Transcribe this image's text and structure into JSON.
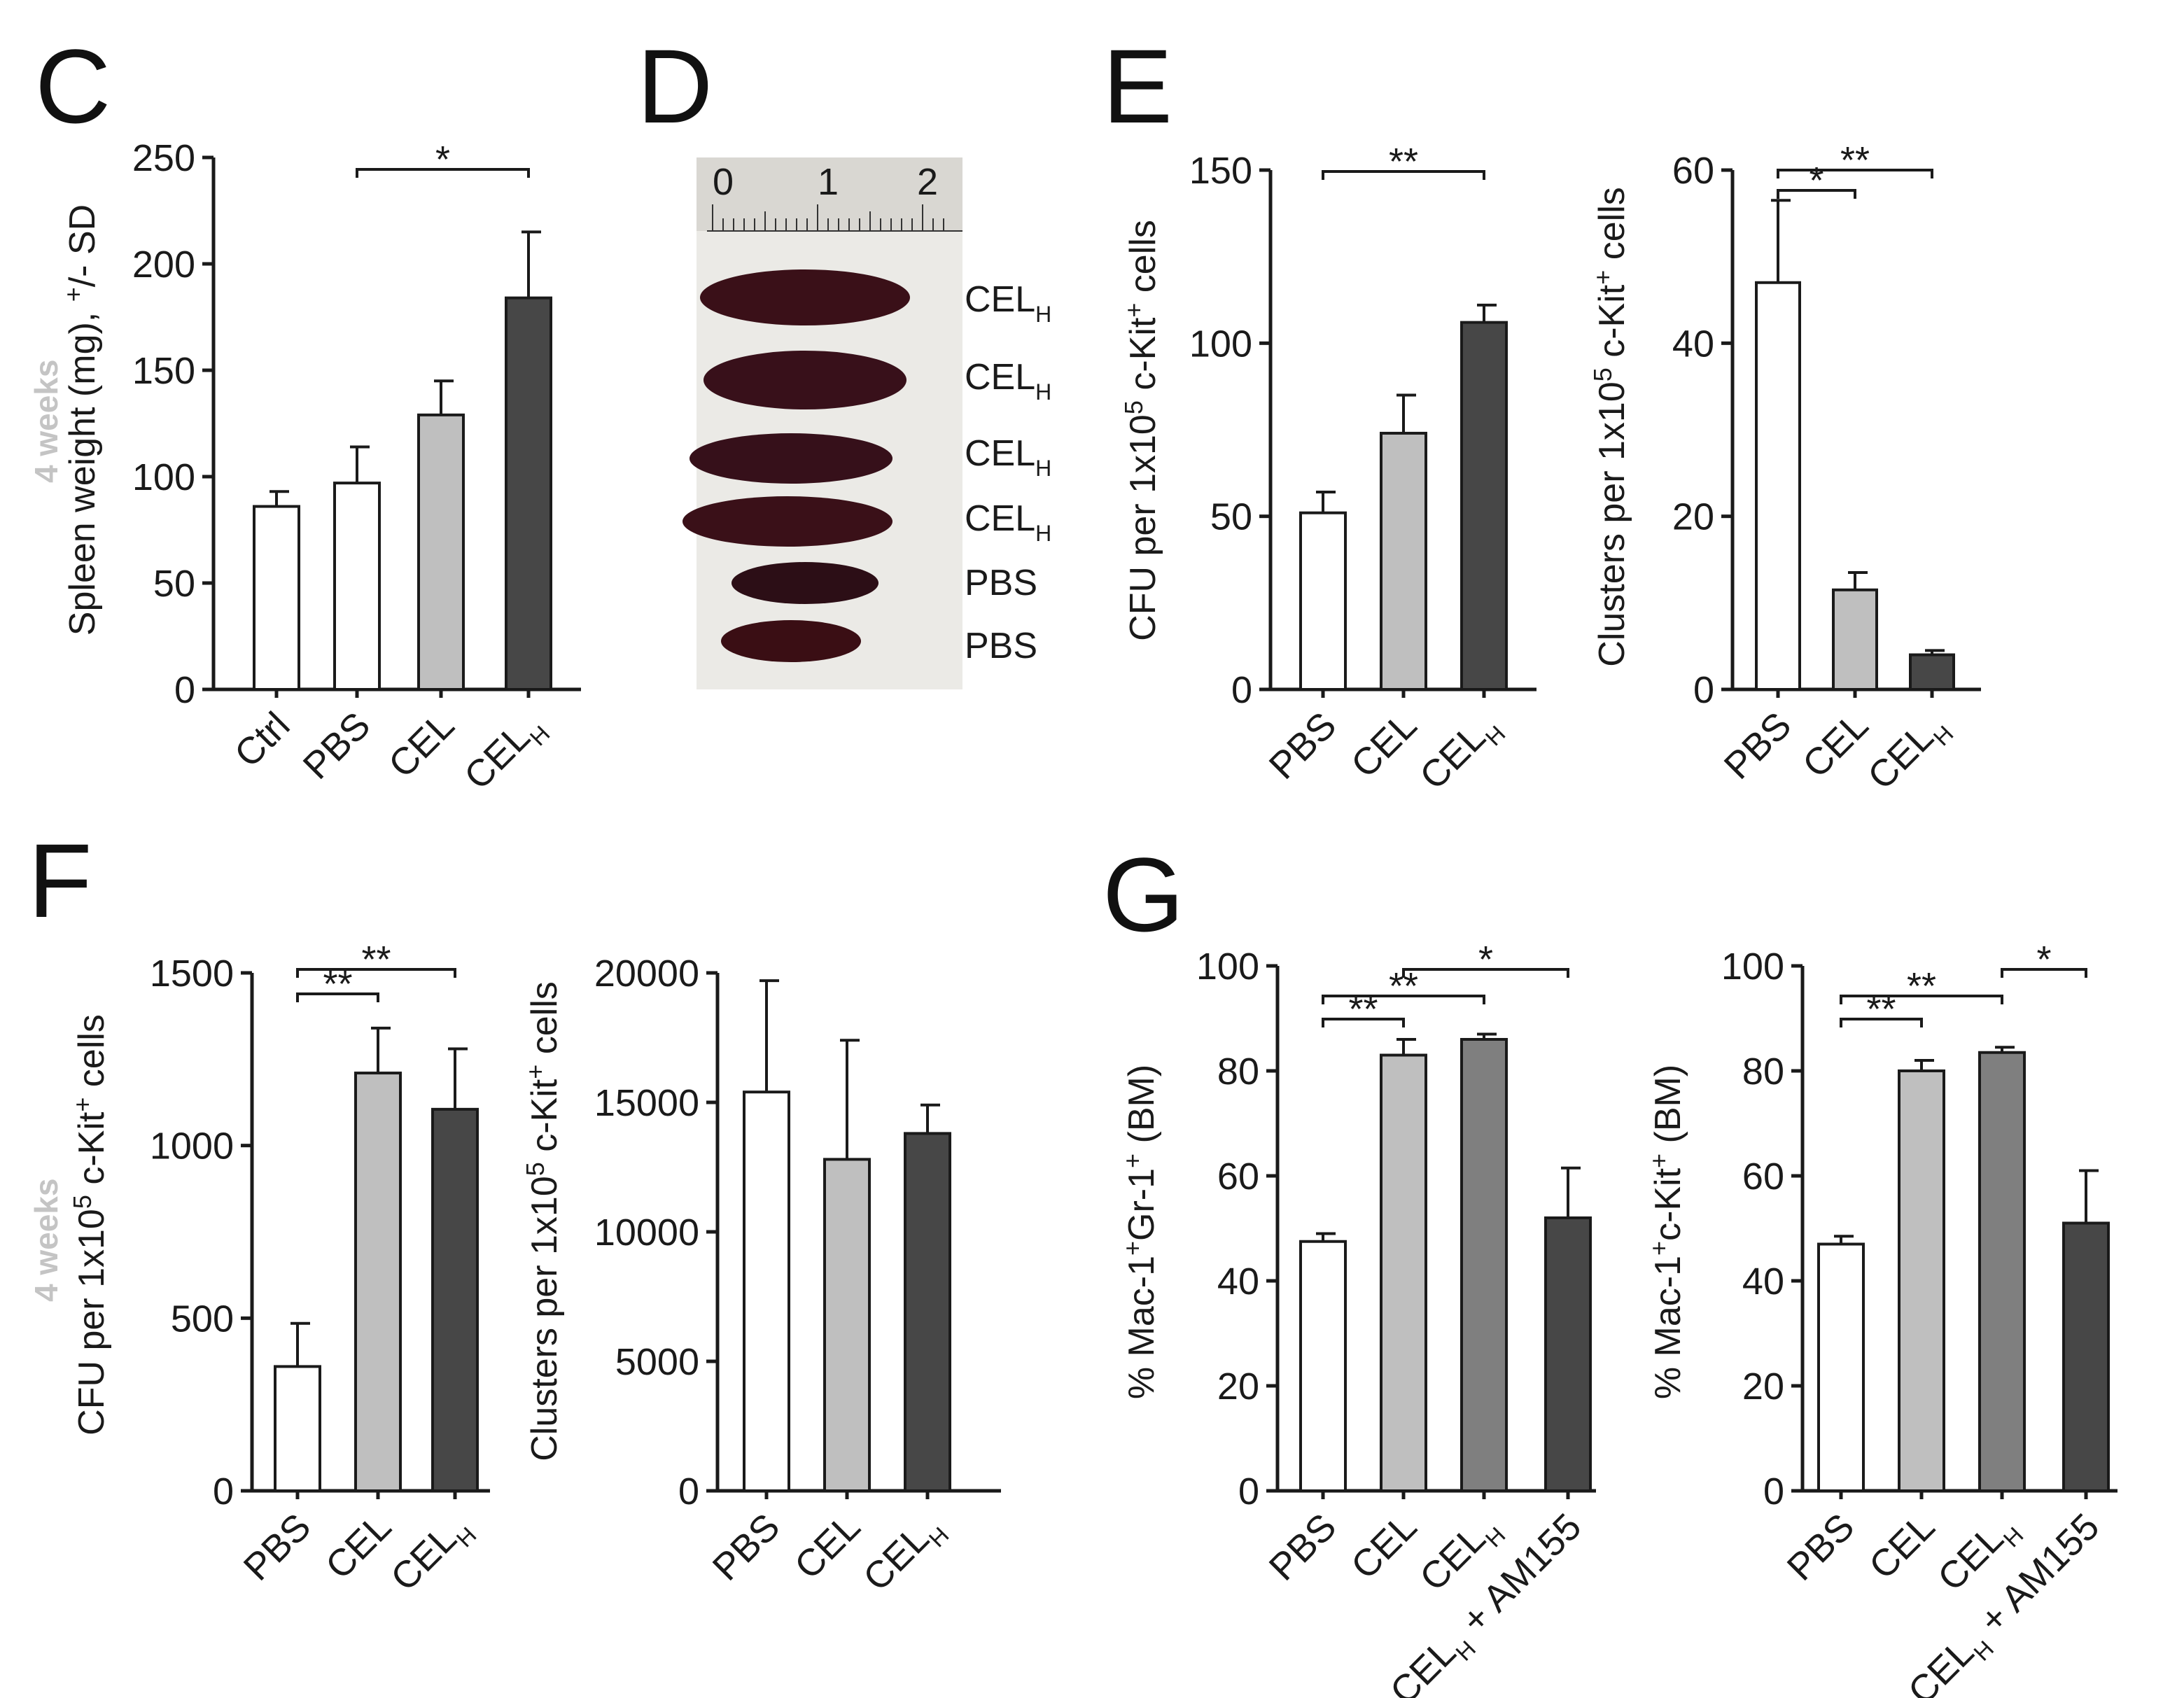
{
  "panel_labels": {
    "c": "C",
    "d": "D",
    "e": "E",
    "f": "F",
    "g": "G"
  },
  "side_labels": {
    "row1": "4 weeks",
    "row2": "4 weeks"
  },
  "photo": {
    "ruler_ticks": [
      "0",
      "1",
      "2"
    ],
    "spleen_labels": [
      {
        "base": "CEL",
        "sub": "H"
      },
      {
        "base": "CEL",
        "sub": "H"
      },
      {
        "base": "CEL",
        "sub": "H"
      },
      {
        "base": "CEL",
        "sub": "H"
      },
      {
        "base": "PBS",
        "sub": ""
      },
      {
        "base": "PBS",
        "sub": ""
      }
    ]
  },
  "colors": {
    "white": "#ffffff",
    "light_gray": "#bfbfbf",
    "mid_gray": "#7f7f7f",
    "dark_gray": "#474747"
  },
  "chart_data": [
    {
      "id": "c",
      "type": "bar",
      "ylabel": "Spleen weight (mg), +/- SD",
      "ylim": [
        0,
        250
      ],
      "yticks": [
        0,
        50,
        100,
        150,
        200,
        250
      ],
      "categories": [
        {
          "base": "Ctrl",
          "sub": ""
        },
        {
          "base": "PBS",
          "sub": ""
        },
        {
          "base": "CEL",
          "sub": ""
        },
        {
          "base": "CEL",
          "sub": "H"
        }
      ],
      "values": [
        86,
        97,
        129,
        184
      ],
      "errors": [
        7,
        17,
        16,
        31
      ],
      "bar_colors": [
        "#ffffff",
        "#ffffff",
        "#bfbfbf",
        "#474747"
      ],
      "significance": [
        {
          "from": 1,
          "to": 3,
          "label": "*"
        }
      ]
    },
    {
      "id": "e1",
      "type": "bar",
      "ylabel": "CFU per 1x10^5 c-Kit+ cells",
      "ylim": [
        0,
        150
      ],
      "yticks": [
        0,
        50,
        100,
        150
      ],
      "categories": [
        {
          "base": "PBS",
          "sub": ""
        },
        {
          "base": "CEL",
          "sub": ""
        },
        {
          "base": "CEL",
          "sub": "H"
        }
      ],
      "values": [
        51,
        74,
        106
      ],
      "errors": [
        6,
        11,
        5
      ],
      "bar_colors": [
        "#ffffff",
        "#bfbfbf",
        "#474747"
      ],
      "significance": [
        {
          "from": 0,
          "to": 2,
          "label": "**"
        }
      ]
    },
    {
      "id": "e2",
      "type": "bar",
      "ylabel": "Clusters per 1x10^5 c-Kit+ cells",
      "ylim": [
        0,
        60
      ],
      "yticks": [
        0,
        20,
        40,
        60
      ],
      "categories": [
        {
          "base": "PBS",
          "sub": ""
        },
        {
          "base": "CEL",
          "sub": ""
        },
        {
          "base": "CEL",
          "sub": "H"
        }
      ],
      "values": [
        47,
        11.5,
        4
      ],
      "errors": [
        9.5,
        2,
        0.5
      ],
      "bar_colors": [
        "#ffffff",
        "#bfbfbf",
        "#474747"
      ],
      "significance": [
        {
          "from": 0,
          "to": 1,
          "label": "*"
        },
        {
          "from": 0,
          "to": 2,
          "label": "**"
        }
      ]
    },
    {
      "id": "f1",
      "type": "bar",
      "ylabel": "CFU per 1x10^5 c-Kit+ cells",
      "ylim": [
        0,
        1500
      ],
      "yticks": [
        0,
        500,
        1000,
        1500
      ],
      "categories": [
        {
          "base": "PBS",
          "sub": ""
        },
        {
          "base": "CEL",
          "sub": ""
        },
        {
          "base": "CEL",
          "sub": "H"
        }
      ],
      "values": [
        360,
        1210,
        1105
      ],
      "errors": [
        125,
        130,
        175
      ],
      "bar_colors": [
        "#ffffff",
        "#bfbfbf",
        "#474747"
      ],
      "significance": [
        {
          "from": 0,
          "to": 1,
          "label": "**"
        },
        {
          "from": 0,
          "to": 2,
          "label": "**"
        }
      ]
    },
    {
      "id": "f2",
      "type": "bar",
      "ylabel": "Clusters per 1x10^5 c-Kit+ cells",
      "ylim": [
        0,
        20000
      ],
      "yticks": [
        0,
        5000,
        10000,
        15000,
        20000
      ],
      "categories": [
        {
          "base": "PBS",
          "sub": ""
        },
        {
          "base": "CEL",
          "sub": ""
        },
        {
          "base": "CEL",
          "sub": "H"
        }
      ],
      "values": [
        15400,
        12800,
        13800
      ],
      "errors": [
        4300,
        4600,
        1100
      ],
      "bar_colors": [
        "#ffffff",
        "#bfbfbf",
        "#474747"
      ],
      "significance": []
    },
    {
      "id": "g1",
      "type": "bar",
      "ylabel": "% Mac-1+Gr-1+ (BM)",
      "ylim": [
        0,
        100
      ],
      "yticks": [
        0,
        20,
        40,
        60,
        80,
        100
      ],
      "categories": [
        {
          "base": "PBS",
          "sub": ""
        },
        {
          "base": "CEL",
          "sub": ""
        },
        {
          "base": "CEL",
          "sub": "H"
        },
        {
          "base": "CEL",
          "sub": "H",
          "tail": "+ AM155"
        }
      ],
      "values": [
        47.5,
        83,
        86,
        52
      ],
      "errors": [
        1.5,
        3,
        1,
        9.5
      ],
      "bar_colors": [
        "#ffffff",
        "#bfbfbf",
        "#7f7f7f",
        "#474747"
      ],
      "significance": [
        {
          "from": 0,
          "to": 1,
          "label": "**"
        },
        {
          "from": 0,
          "to": 2,
          "label": "**"
        },
        {
          "from": 1,
          "to": 3,
          "label": "*"
        }
      ]
    },
    {
      "id": "g2",
      "type": "bar",
      "ylabel": "% Mac-1+c-Kit+ (BM)",
      "ylim": [
        0,
        100
      ],
      "yticks": [
        0,
        20,
        40,
        60,
        80,
        100
      ],
      "categories": [
        {
          "base": "PBS",
          "sub": ""
        },
        {
          "base": "CEL",
          "sub": ""
        },
        {
          "base": "CEL",
          "sub": "H"
        },
        {
          "base": "CEL",
          "sub": "H",
          "tail": "+ AM155"
        }
      ],
      "values": [
        47,
        80,
        83.5,
        51
      ],
      "errors": [
        1.5,
        2,
        1,
        10
      ],
      "bar_colors": [
        "#ffffff",
        "#bfbfbf",
        "#7f7f7f",
        "#474747"
      ],
      "significance": [
        {
          "from": 0,
          "to": 1,
          "label": "**"
        },
        {
          "from": 0,
          "to": 2,
          "label": "**"
        },
        {
          "from": 2,
          "to": 3,
          "label": "*"
        }
      ]
    }
  ]
}
